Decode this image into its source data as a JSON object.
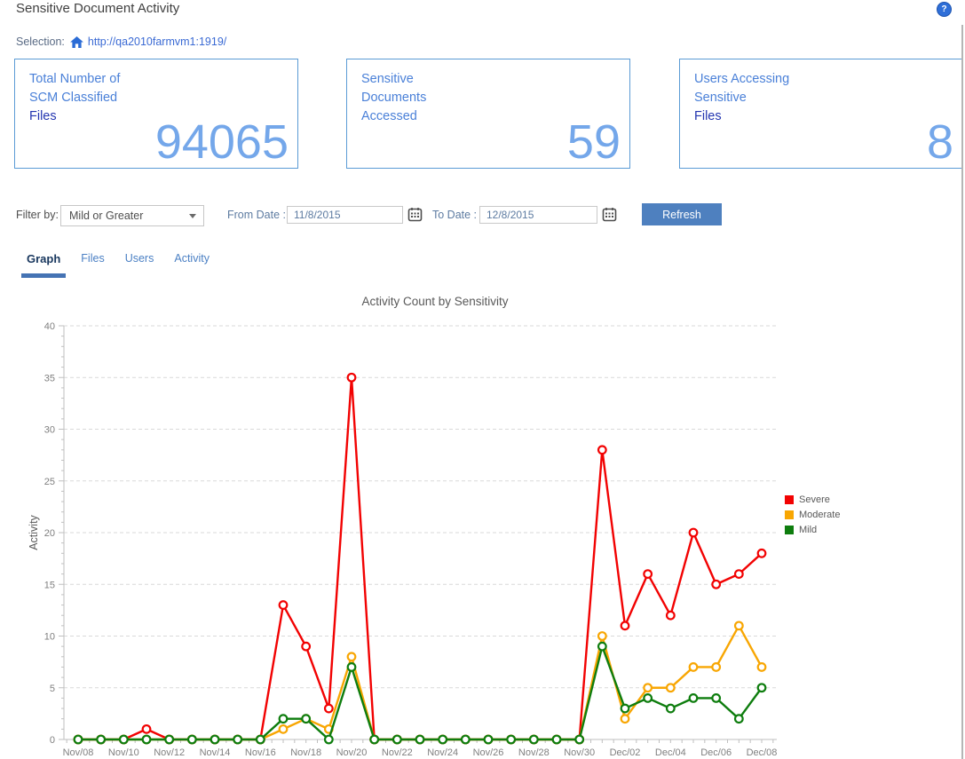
{
  "header": {
    "title": "Sensitive Document Activity",
    "help_tooltip": "?"
  },
  "selection": {
    "label": "Selection:",
    "url": "http://qa2010farmvm1:1919/"
  },
  "cards": [
    {
      "line1": "Total Number of",
      "line2": "SCM Classified",
      "line3": "Files",
      "value": "94065"
    },
    {
      "line1": "Sensitive",
      "line2": "Documents",
      "line3": "Accessed",
      "value": "59"
    },
    {
      "line1": "Users Accessing",
      "line2": "Sensitive",
      "line3": "Files",
      "value": "8"
    }
  ],
  "filters": {
    "filter_by_label": "Filter by:",
    "filter_value": "Mild or Greater",
    "from_label": "From Date :",
    "from_value": "11/8/2015",
    "to_label": "To Date :",
    "to_value": "12/8/2015",
    "refresh_label": "Refresh"
  },
  "tabs": [
    {
      "label": "Graph",
      "active": true
    },
    {
      "label": "Files",
      "active": false
    },
    {
      "label": "Users",
      "active": false
    },
    {
      "label": "Activity",
      "active": false
    }
  ],
  "chart_data": {
    "type": "line",
    "title": "Activity Count by Sensitivity",
    "xlabel": "",
    "ylabel": "Activity",
    "ylim": [
      0,
      40
    ],
    "ytick_step": 5,
    "grid": "horizontal-dashed",
    "legend_position": "right",
    "x": [
      "Nov/08",
      "Nov/09",
      "Nov/10",
      "Nov/11",
      "Nov/12",
      "Nov/13",
      "Nov/14",
      "Nov/15",
      "Nov/16",
      "Nov/17",
      "Nov/18",
      "Nov/19",
      "Nov/20",
      "Nov/21",
      "Nov/22",
      "Nov/23",
      "Nov/24",
      "Nov/25",
      "Nov/26",
      "Nov/27",
      "Nov/28",
      "Nov/29",
      "Nov/30",
      "Dec/01",
      "Dec/02",
      "Dec/03",
      "Dec/04",
      "Dec/05",
      "Dec/06",
      "Dec/07",
      "Dec/08"
    ],
    "xtick_label_every": 2,
    "series": [
      {
        "name": "Severe",
        "color": "#f20202",
        "values": [
          0,
          0,
          0,
          1,
          0,
          0,
          0,
          0,
          0,
          13,
          9,
          3,
          35,
          0,
          0,
          0,
          0,
          0,
          0,
          0,
          0,
          0,
          0,
          28,
          11,
          16,
          12,
          20,
          15,
          16,
          18
        ]
      },
      {
        "name": "Moderate",
        "color": "#f8a602",
        "values": [
          0,
          0,
          0,
          0,
          0,
          0,
          0,
          0,
          0,
          1,
          2,
          1,
          8,
          0,
          0,
          0,
          0,
          0,
          0,
          0,
          0,
          0,
          0,
          10,
          2,
          5,
          5,
          7,
          7,
          11,
          7
        ]
      },
      {
        "name": "Mild",
        "color": "#0e7d0e",
        "values": [
          0,
          0,
          0,
          0,
          0,
          0,
          0,
          0,
          0,
          2,
          2,
          0,
          7,
          0,
          0,
          0,
          0,
          0,
          0,
          0,
          0,
          0,
          0,
          9,
          3,
          4,
          3,
          4,
          4,
          2,
          5
        ]
      }
    ]
  },
  "colors": {
    "card_border": "#5b9bd5",
    "card_label": "#4a80d8",
    "card_label_dark": "#2335b0",
    "card_value": "#74a7ea",
    "refresh_bg": "#4e80bf",
    "tab_active": "#17365d",
    "tab_inactive": "#4b80c4",
    "tab_underline": "#4573b4",
    "axis": "#bfbfbf",
    "gridline": "#d9d9d9",
    "tick_label": "#7f7f7f",
    "link_blue": "#3a6ad4"
  }
}
